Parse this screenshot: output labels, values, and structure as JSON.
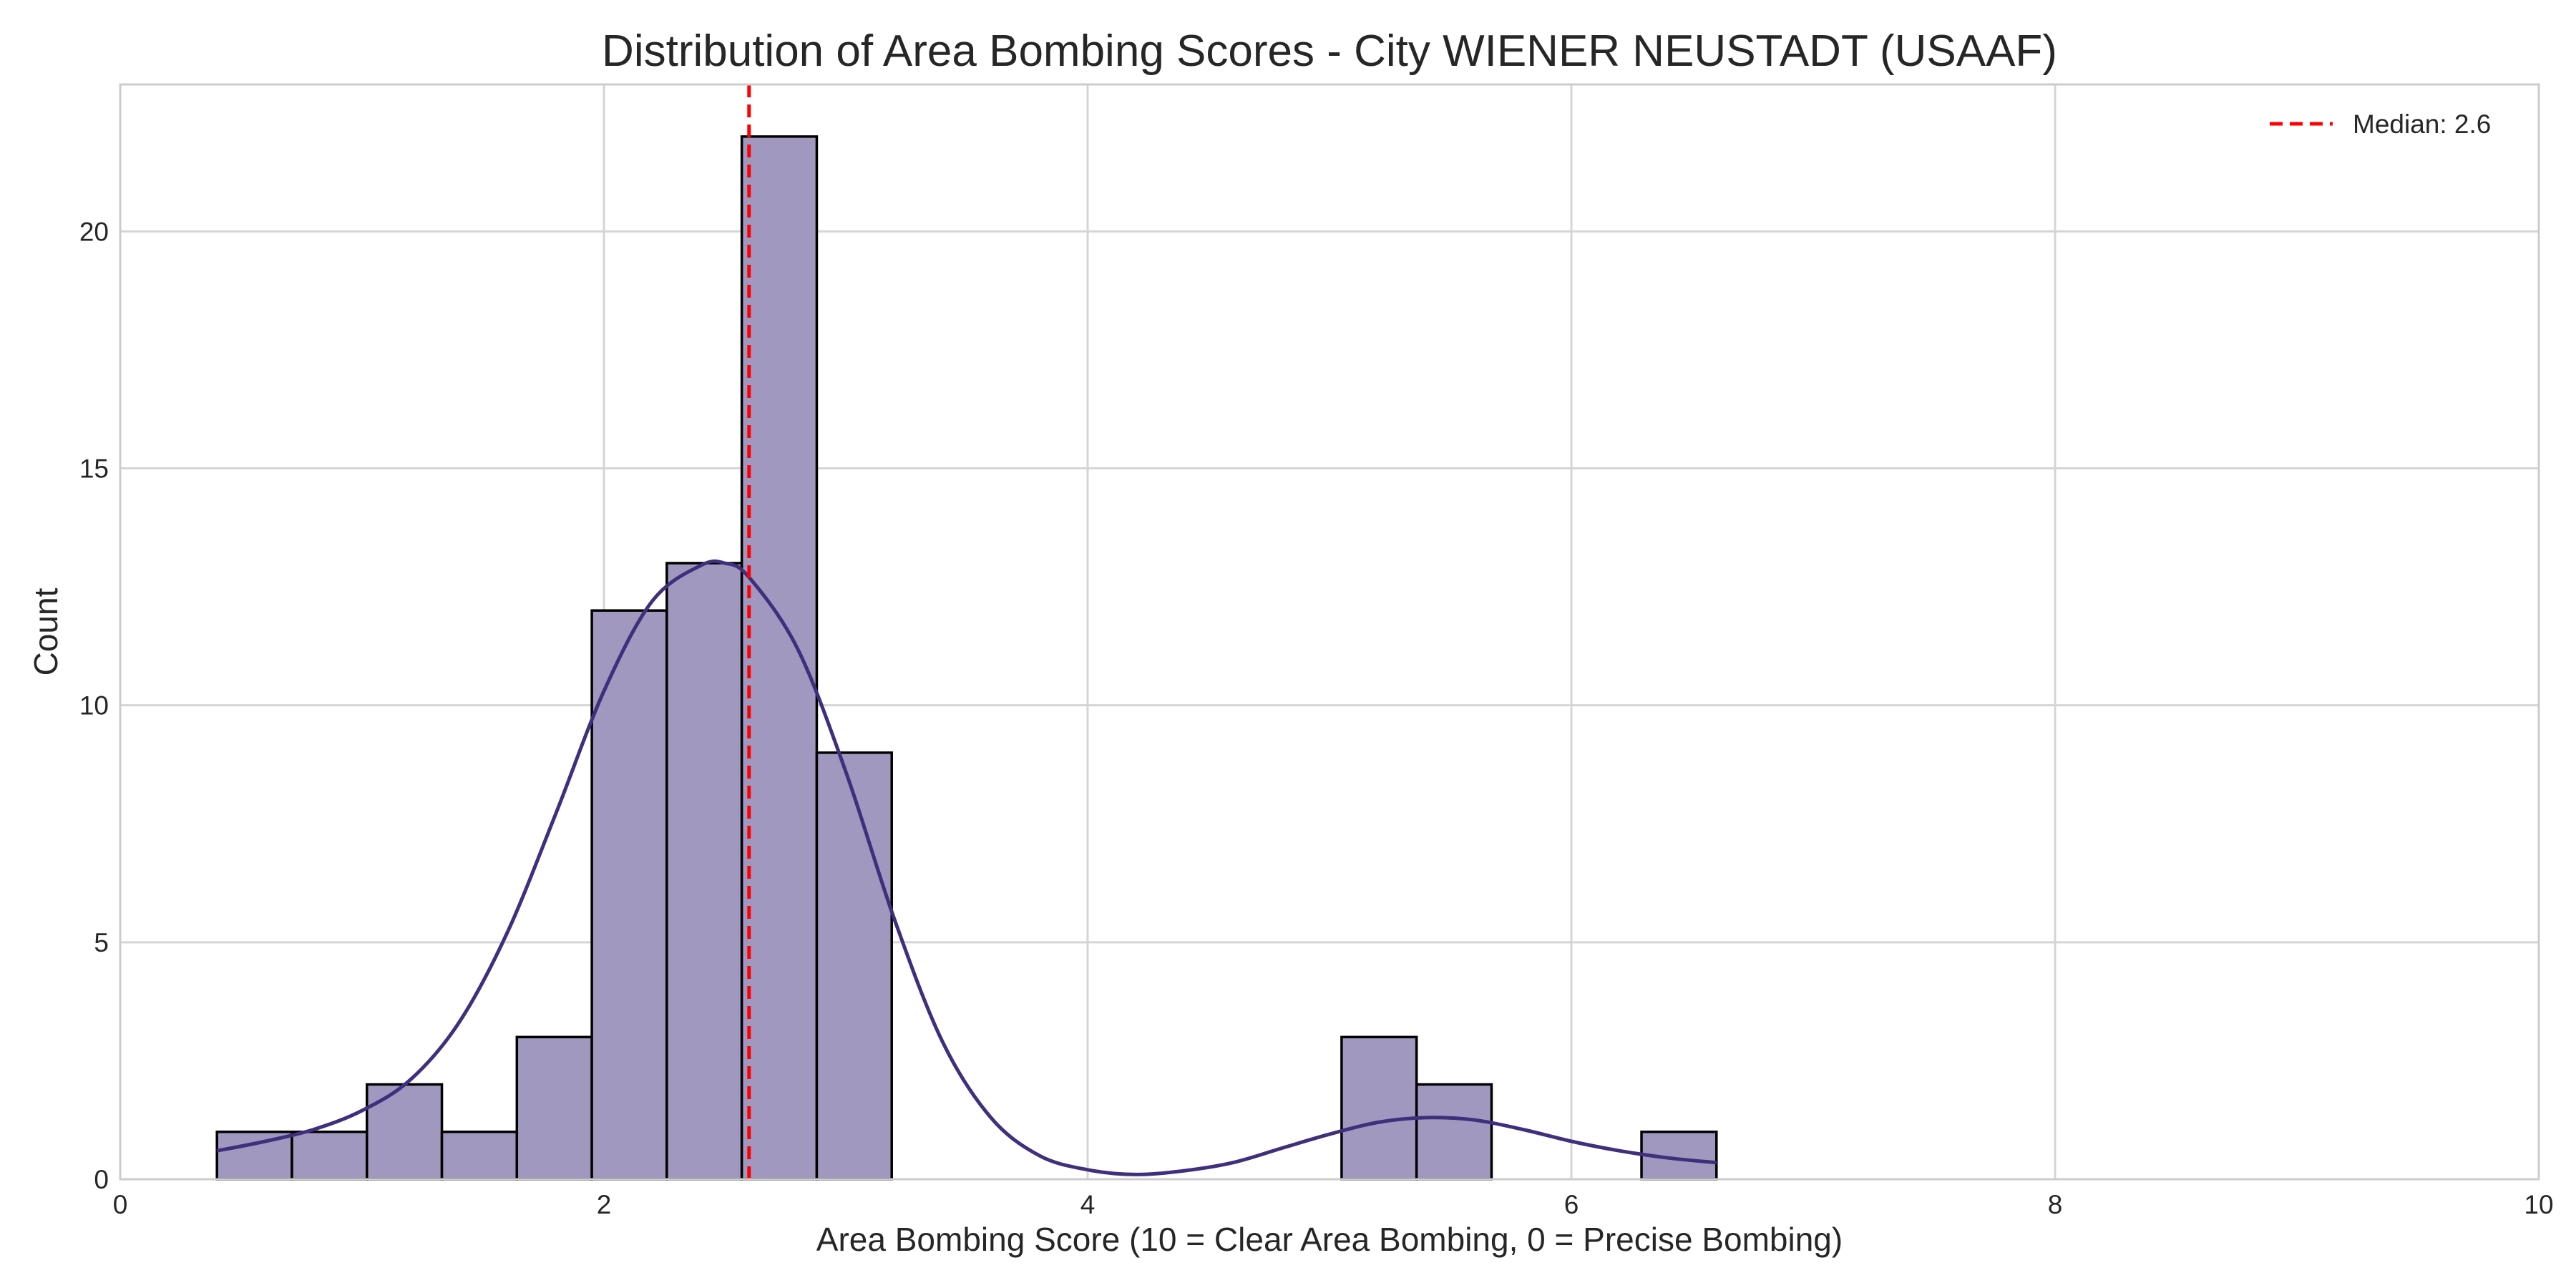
{
  "chart_data": {
    "type": "bar",
    "title": "Distribution of Area Bombing Scores - City WIENER NEUSTADT (USAAF)",
    "xlabel": "Area Bombing Score (10 = Clear Area Bombing, 0 = Precise Bombing)",
    "ylabel": "Count",
    "xlim": [
      0,
      10
    ],
    "ylim": [
      0,
      23.1
    ],
    "xticks": [
      0,
      2,
      4,
      6,
      8,
      10
    ],
    "yticks": [
      0,
      5,
      10,
      15,
      20
    ],
    "grid": true,
    "bins": [
      {
        "x0": 0.4,
        "x1": 0.71,
        "count": 1
      },
      {
        "x0": 0.71,
        "x1": 1.02,
        "count": 1
      },
      {
        "x0": 1.02,
        "x1": 1.33,
        "count": 2
      },
      {
        "x0": 1.33,
        "x1": 1.64,
        "count": 1
      },
      {
        "x0": 1.64,
        "x1": 1.95,
        "count": 3
      },
      {
        "x0": 1.95,
        "x1": 2.26,
        "count": 12
      },
      {
        "x0": 2.26,
        "x1": 2.57,
        "count": 13
      },
      {
        "x0": 2.57,
        "x1": 2.88,
        "count": 22
      },
      {
        "x0": 2.88,
        "x1": 3.19,
        "count": 9
      },
      {
        "x0": 5.05,
        "x1": 5.36,
        "count": 3
      },
      {
        "x0": 5.36,
        "x1": 5.67,
        "count": 2
      },
      {
        "x0": 6.29,
        "x1": 6.6,
        "count": 1
      }
    ],
    "kde": {
      "x": [
        0.4,
        0.6,
        0.8,
        1.0,
        1.2,
        1.4,
        1.6,
        1.8,
        2.0,
        2.2,
        2.4,
        2.5,
        2.6,
        2.8,
        3.0,
        3.2,
        3.4,
        3.6,
        3.8,
        4.0,
        4.2,
        4.4,
        4.6,
        4.8,
        5.0,
        5.2,
        5.4,
        5.6,
        5.8,
        6.0,
        6.2,
        6.4,
        6.6
      ],
      "y": [
        0.6,
        0.8,
        1.05,
        1.45,
        2.1,
        3.3,
        5.2,
        7.7,
        10.3,
        12.2,
        12.95,
        13.0,
        12.7,
        11.2,
        8.6,
        5.5,
        2.9,
        1.3,
        0.5,
        0.2,
        0.1,
        0.18,
        0.35,
        0.65,
        0.95,
        1.2,
        1.3,
        1.25,
        1.05,
        0.8,
        0.6,
        0.45,
        0.35
      ]
    },
    "median": 2.6,
    "legend": {
      "label": "Median: 2.6",
      "position": "top-right"
    },
    "colors": {
      "bar_fill": "#a198bf",
      "bar_edge": "#000000",
      "kde_line": "#3f2f7c",
      "median_line": "#ff0000",
      "grid": "#d5d5d5",
      "frame": "#cccccc",
      "text": "#262626"
    }
  }
}
